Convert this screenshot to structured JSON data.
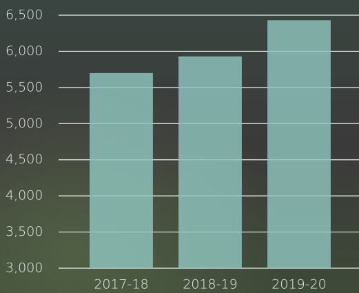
{
  "chart_data": {
    "type": "bar",
    "categories": [
      "2017-18",
      "2018-19",
      "2019-20"
    ],
    "values": [
      5700,
      5930,
      6430
    ],
    "color": "#8fc4bd",
    "ylim": [
      3000,
      6500
    ],
    "yticks": [
      {
        "value": 3000,
        "label": "3,000"
      },
      {
        "value": 3500,
        "label": "3,500"
      },
      {
        "value": 4000,
        "label": "4,000"
      },
      {
        "value": 4500,
        "label": "4,500"
      },
      {
        "value": 5000,
        "label": "5,000"
      },
      {
        "value": 5500,
        "label": "5,500"
      },
      {
        "value": 6000,
        "label": "6,000"
      },
      {
        "value": 6500,
        "label": "6,500"
      }
    ],
    "grid": true
  }
}
